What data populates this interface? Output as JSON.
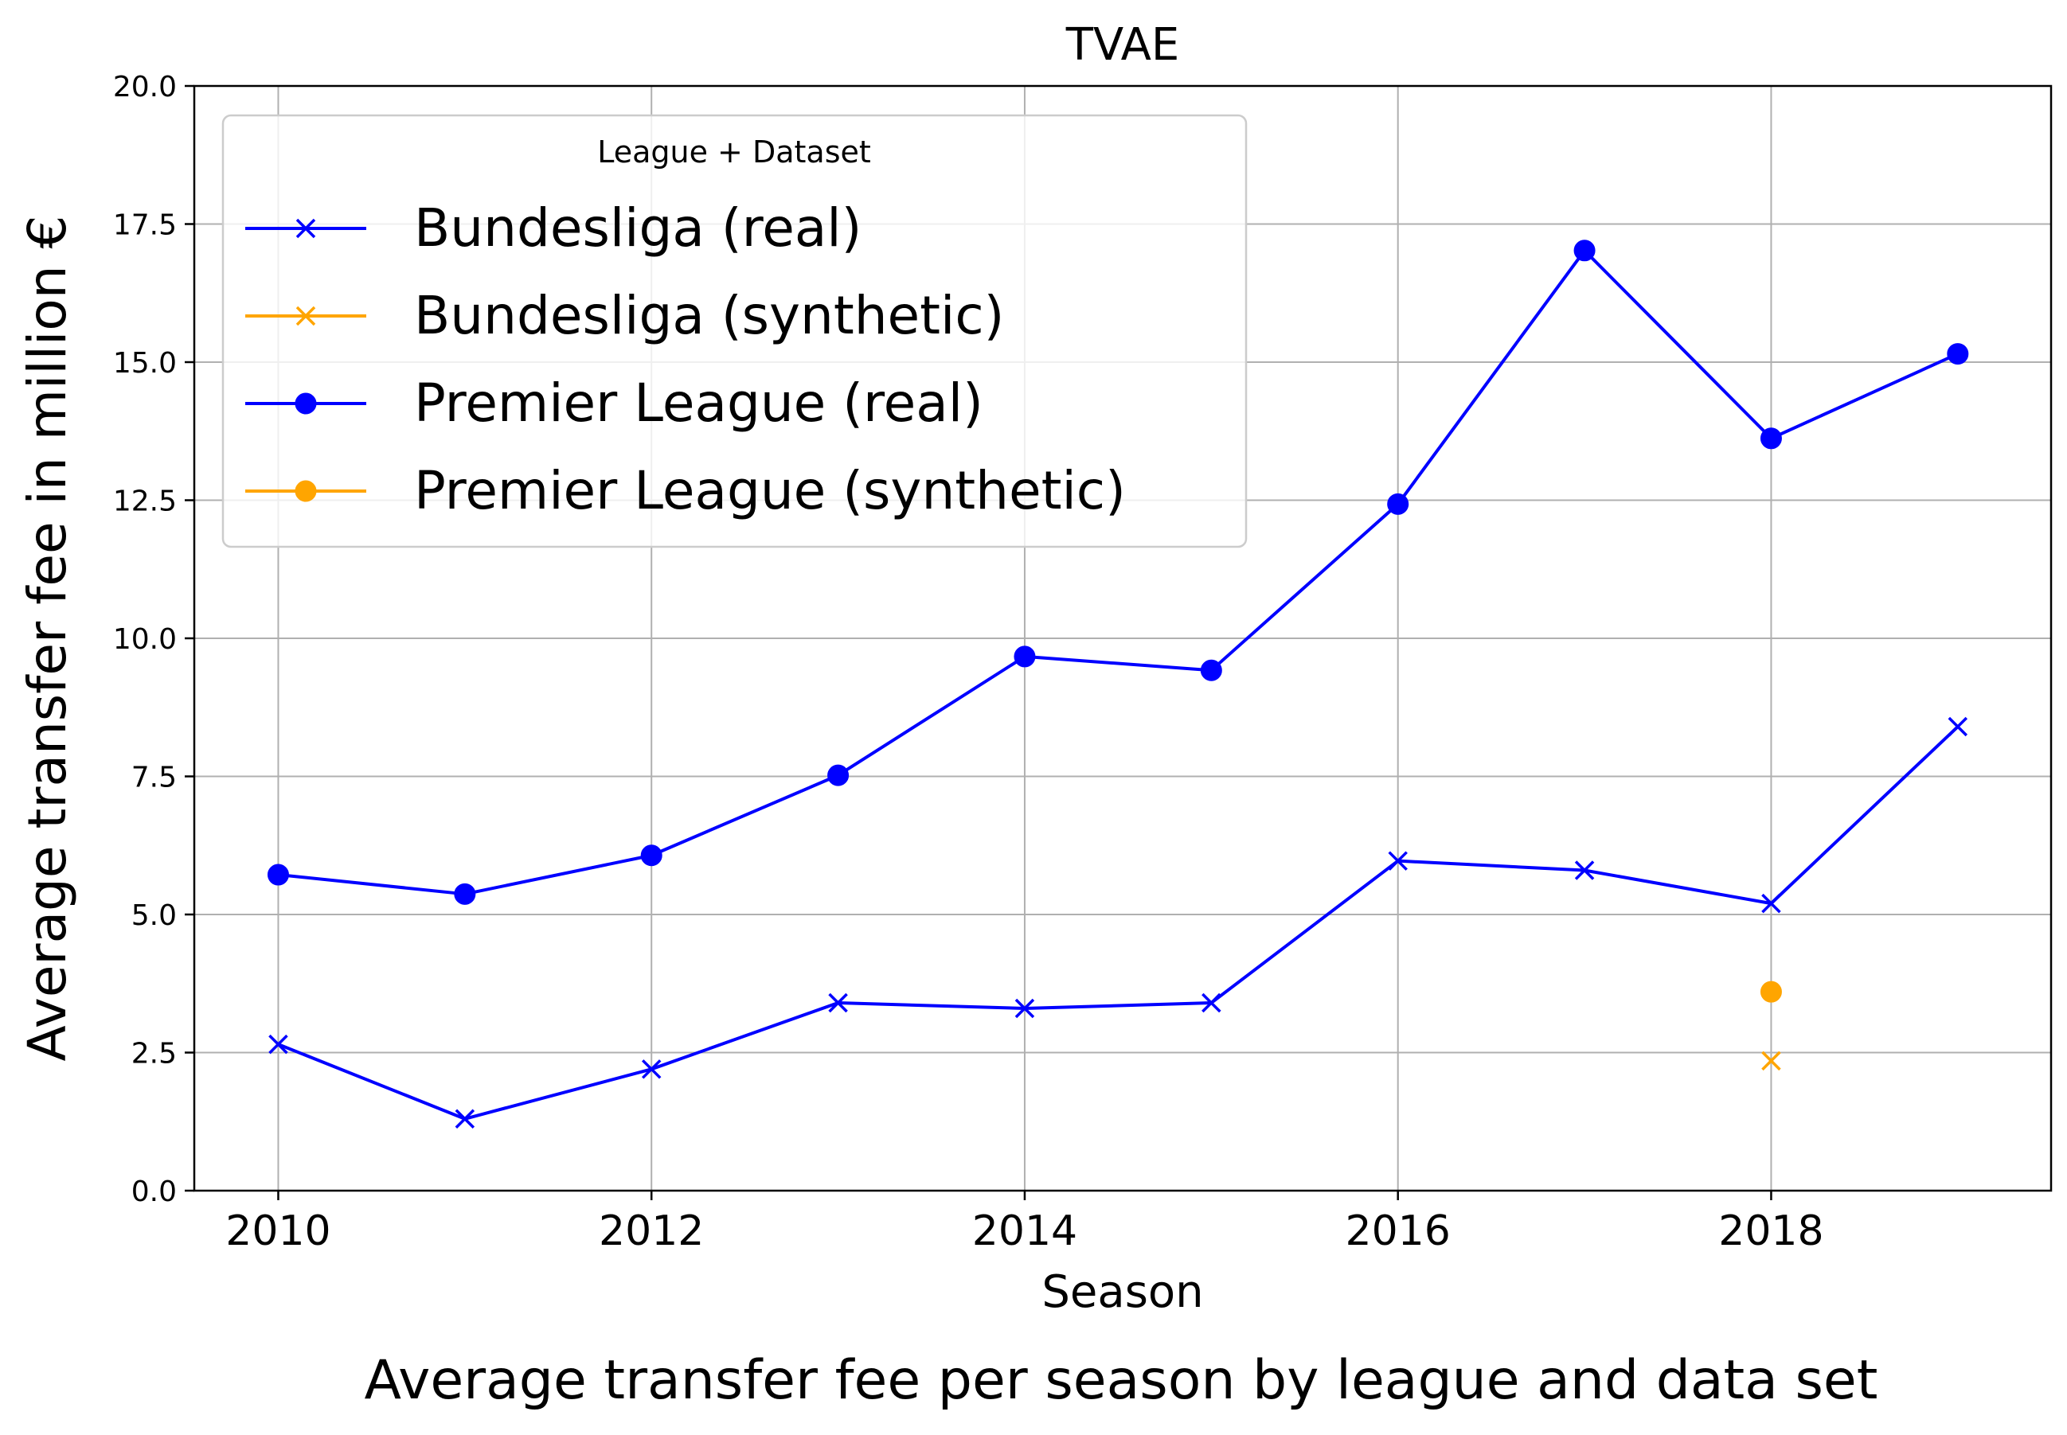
{
  "chart_data": {
    "type": "line",
    "title": "TVAE",
    "caption": "Average transfer fee per season by league and data set",
    "xlabel": "Season",
    "ylabel": "Average transfer fee in million €",
    "xlim": [
      2009.55,
      2019.5
    ],
    "ylim": [
      0,
      20
    ],
    "xticks": [
      2010,
      2012,
      2014,
      2016,
      2018
    ],
    "yticks": [
      0,
      2.5,
      5,
      7.5,
      10,
      12.5,
      15,
      17.5,
      20
    ],
    "ytick_labels": [
      "0.0",
      "2.5",
      "5.0",
      "7.5",
      "10.0",
      "12.5",
      "15.0",
      "17.5",
      "20.0"
    ],
    "grid": true,
    "legend": {
      "title": "League + Dataset",
      "placement": "top-left"
    },
    "series": [
      {
        "name": "Bundesliga (real)",
        "color": "#0000ff",
        "marker": "x",
        "x": [
          2010,
          2011,
          2012,
          2013,
          2014,
          2015,
          2016,
          2017,
          2018,
          2019
        ],
        "y": [
          2.65,
          1.3,
          2.2,
          3.4,
          3.3,
          3.4,
          5.97,
          5.8,
          5.2,
          8.4
        ]
      },
      {
        "name": "Bundesliga (synthetic)",
        "color": "#ffa500",
        "marker": "x",
        "x": [
          2018
        ],
        "y": [
          2.35
        ]
      },
      {
        "name": "Premier League (real)",
        "color": "#0000ff",
        "marker": "o",
        "x": [
          2010,
          2011,
          2012,
          2013,
          2014,
          2015,
          2016,
          2017,
          2018,
          2019
        ],
        "y": [
          5.72,
          5.37,
          6.07,
          7.52,
          9.67,
          9.42,
          12.43,
          17.02,
          13.62,
          15.15
        ]
      },
      {
        "name": "Premier League (synthetic)",
        "color": "#ffa500",
        "marker": "o",
        "x": [
          2018
        ],
        "y": [
          3.6
        ]
      }
    ]
  }
}
